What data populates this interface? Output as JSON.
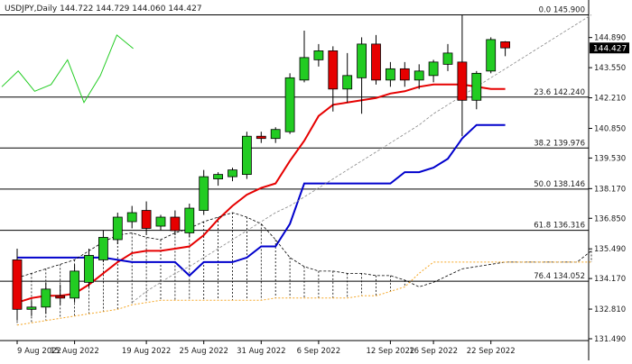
{
  "chart_data": {
    "type": "candlestick",
    "symbol": "USDJPY",
    "timeframe": "Daily",
    "ohlc_header": {
      "open": "144.722",
      "high": "144.729",
      "low": "144.060",
      "close": "144.427"
    },
    "current_price_label": "144.427",
    "y_axis": {
      "min": 131.49,
      "max": 146.4,
      "ticks": [
        "144.890",
        "143.550",
        "142.210",
        "140.850",
        "139.530",
        "138.170",
        "136.850",
        "135.490",
        "134.170",
        "132.810",
        "131.490"
      ],
      "tick_values": [
        144.89,
        143.55,
        142.21,
        140.85,
        139.53,
        138.17,
        136.85,
        135.49,
        134.17,
        132.81,
        131.49
      ]
    },
    "x_axis": {
      "labels": [
        "9 Aug 2022",
        "15 Aug 2022",
        "19 Aug 2022",
        "25 Aug 2022",
        "31 Aug 2022",
        "6 Sep 2022",
        "12 Sep 2022",
        "16 Sep 2022",
        "22 Sep 2022"
      ],
      "label_bars": [
        0,
        4,
        9,
        13,
        17,
        21,
        26,
        29,
        33
      ]
    },
    "fib_levels": [
      {
        "label": "0.0 145.900",
        "value": 145.9
      },
      {
        "label": "23.6 142.240",
        "value": 142.24
      },
      {
        "label": "38.2 139.976",
        "value": 139.976
      },
      {
        "label": "50.0 138.146",
        "value": 138.146
      },
      {
        "label": "61.8 136.316",
        "value": 136.316
      },
      {
        "label": "76.4 134.052",
        "value": 134.052
      }
    ],
    "candles": [
      {
        "o": 135.0,
        "h": 135.5,
        "l": 132.3,
        "c": 132.8
      },
      {
        "o": 132.8,
        "h": 133.2,
        "l": 132.5,
        "c": 132.9
      },
      {
        "o": 132.9,
        "h": 134.0,
        "l": 132.6,
        "c": 133.7
      },
      {
        "o": 133.4,
        "h": 133.9,
        "l": 133.0,
        "c": 133.3
      },
      {
        "o": 133.3,
        "h": 134.8,
        "l": 133.1,
        "c": 134.5
      },
      {
        "o": 134.0,
        "h": 135.5,
        "l": 133.8,
        "c": 135.2
      },
      {
        "o": 135.0,
        "h": 136.3,
        "l": 134.9,
        "c": 136.0
      },
      {
        "o": 135.9,
        "h": 137.1,
        "l": 135.7,
        "c": 136.9
      },
      {
        "o": 136.7,
        "h": 137.4,
        "l": 136.4,
        "c": 137.1
      },
      {
        "o": 137.2,
        "h": 137.6,
        "l": 136.1,
        "c": 136.4
      },
      {
        "o": 136.5,
        "h": 137.0,
        "l": 136.3,
        "c": 136.9
      },
      {
        "o": 136.9,
        "h": 137.2,
        "l": 136.1,
        "c": 136.3
      },
      {
        "o": 136.2,
        "h": 137.5,
        "l": 136.0,
        "c": 137.3
      },
      {
        "o": 137.2,
        "h": 139.0,
        "l": 137.0,
        "c": 138.7
      },
      {
        "o": 138.6,
        "h": 138.9,
        "l": 138.3,
        "c": 138.8
      },
      {
        "o": 138.7,
        "h": 139.1,
        "l": 138.5,
        "c": 139.0
      },
      {
        "o": 138.8,
        "h": 140.7,
        "l": 138.6,
        "c": 140.5
      },
      {
        "o": 140.5,
        "h": 140.7,
        "l": 140.2,
        "c": 140.4
      },
      {
        "o": 140.4,
        "h": 140.9,
        "l": 140.2,
        "c": 140.8
      },
      {
        "o": 140.7,
        "h": 143.3,
        "l": 140.6,
        "c": 143.1
      },
      {
        "o": 143.0,
        "h": 145.2,
        "l": 142.9,
        "c": 144.0
      },
      {
        "o": 143.9,
        "h": 144.6,
        "l": 143.6,
        "c": 144.3
      },
      {
        "o": 144.3,
        "h": 144.5,
        "l": 141.6,
        "c": 142.6
      },
      {
        "o": 142.6,
        "h": 144.2,
        "l": 142.0,
        "c": 143.2
      },
      {
        "o": 143.1,
        "h": 144.9,
        "l": 141.5,
        "c": 144.6
      },
      {
        "o": 144.6,
        "h": 145.0,
        "l": 142.8,
        "c": 143.0
      },
      {
        "o": 143.0,
        "h": 143.8,
        "l": 142.7,
        "c": 143.5
      },
      {
        "o": 143.5,
        "h": 143.8,
        "l": 142.7,
        "c": 143.0
      },
      {
        "o": 143.0,
        "h": 143.7,
        "l": 142.6,
        "c": 143.4
      },
      {
        "o": 143.2,
        "h": 143.9,
        "l": 142.9,
        "c": 143.8
      },
      {
        "o": 143.7,
        "h": 144.6,
        "l": 143.4,
        "c": 144.2
      },
      {
        "o": 143.8,
        "h": 145.9,
        "l": 140.5,
        "c": 142.1
      },
      {
        "o": 142.1,
        "h": 143.4,
        "l": 141.7,
        "c": 143.3
      },
      {
        "o": 143.4,
        "h": 144.9,
        "l": 143.3,
        "c": 144.8
      },
      {
        "o": 144.7,
        "h": 144.73,
        "l": 144.06,
        "c": 144.43
      }
    ],
    "series": [
      {
        "color": "#e60000",
        "values": [
          133.1,
          133.3,
          133.4,
          133.4,
          133.5,
          133.9,
          134.4,
          134.9,
          135.3,
          135.4,
          135.4,
          135.5,
          135.6,
          136.1,
          136.8,
          137.4,
          137.9,
          138.2,
          138.4,
          139.4,
          140.3,
          141.4,
          141.9,
          142.0,
          142.1,
          142.2,
          142.4,
          142.5,
          142.7,
          142.8,
          142.8,
          142.8,
          142.7,
          142.6,
          142.6
        ]
      },
      {
        "color": "#0000cc",
        "values": [
          135.1,
          135.1,
          135.1,
          135.1,
          135.1,
          135.1,
          135.1,
          135.0,
          134.9,
          134.9,
          134.9,
          134.9,
          134.3,
          134.9,
          134.9,
          134.9,
          135.1,
          135.6,
          135.6,
          136.6,
          138.4,
          138.4,
          138.4,
          138.4,
          138.4,
          138.4,
          138.4,
          138.9,
          138.9,
          139.1,
          139.5,
          140.4,
          141.0,
          141.0,
          141.0
        ]
      },
      {
        "color": "#22cc22",
        "values": [
          142.7,
          143.4,
          142.5,
          142.8,
          143.9,
          142.0,
          143.2,
          145.0,
          144.4
        ]
      },
      {
        "color": "#000000",
        "values": [
          134.2,
          134.4,
          134.6,
          134.8,
          135.0,
          135.4,
          135.8,
          136.1,
          136.2,
          136.0,
          135.9,
          136.2,
          136.4,
          136.7,
          136.9,
          137.1,
          136.9,
          136.6,
          135.9,
          135.1,
          134.7,
          134.5,
          134.5,
          134.4,
          134.4,
          134.3,
          134.3,
          134.1,
          133.8,
          134.0,
          134.3,
          134.6,
          134.7,
          134.8,
          134.9,
          134.9,
          134.9,
          134.9,
          134.9,
          134.9,
          135.4
        ]
      },
      {
        "color": "#f5a623",
        "values": [
          132.1,
          132.2,
          132.3,
          132.4,
          132.5,
          132.6,
          132.7,
          132.8,
          133.0,
          133.1,
          133.2,
          133.2,
          133.2,
          133.2,
          133.2,
          133.2,
          133.2,
          133.2,
          133.3,
          133.3,
          133.3,
          133.3,
          133.3,
          133.3,
          133.4,
          133.4,
          133.6,
          133.8,
          134.4,
          134.9,
          134.9,
          134.9,
          134.9,
          134.9,
          134.9,
          134.9,
          134.9,
          134.9,
          134.9,
          134.9,
          134.9
        ]
      },
      {
        "color": "#888888",
        "values": [
          133.1,
          133.6,
          134.0,
          134.4,
          134.7,
          135.1,
          135.5,
          135.9,
          136.3,
          136.7,
          137.1,
          137.4,
          137.8,
          138.2,
          138.6,
          139.0,
          139.4,
          139.8,
          140.2,
          140.6,
          141.0,
          141.5,
          141.9,
          142.3,
          142.7,
          143.1,
          143.5,
          143.9,
          144.3,
          144.7,
          145.1,
          145.5,
          145.9
        ]
      }
    ],
    "colors": {
      "bull": "#22cc22",
      "bear": "#e60000",
      "grid_line": "#000000",
      "price_box": "#000000"
    }
  }
}
